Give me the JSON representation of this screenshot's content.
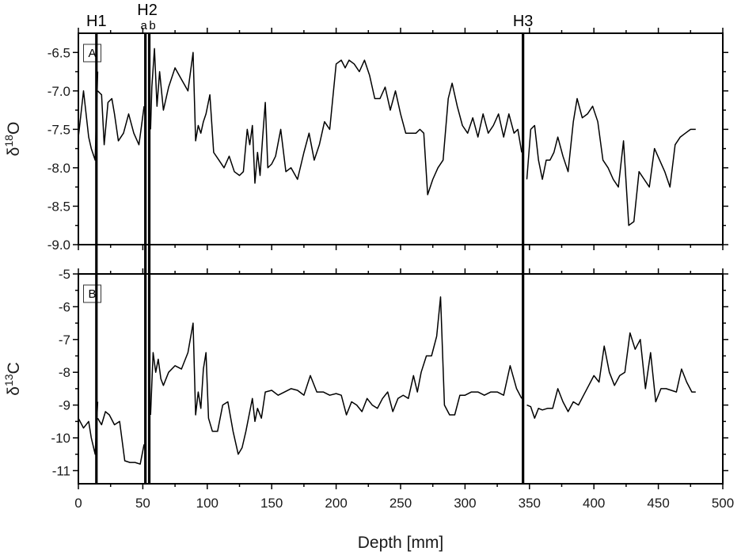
{
  "chart_data": [
    {
      "type": "line",
      "panel_label": "A",
      "ylabel": {
        "main": "δ",
        "sup": "18",
        "tail": "O"
      },
      "ylim": [
        -9.0,
        -6.25
      ],
      "yticks": [
        "-6.5",
        "-7.0",
        "-7.5",
        "-8.0",
        "-8.5",
        "-9.0"
      ],
      "yticks_values": [
        -6.5,
        -7.0,
        -7.5,
        -8.0,
        -8.5,
        -9.0
      ],
      "xlim": [
        0,
        500
      ],
      "series": [
        {
          "segments": [
            {
              "x": [
                0,
                4,
                8,
                10,
                13,
                15
              ],
              "y": [
                -7.6,
                -7.0,
                -7.6,
                -7.75,
                -7.9,
                -6.75
              ]
            },
            {
              "x": [
                15,
                18,
                20,
                23,
                26,
                28,
                31,
                35,
                39,
                43,
                47,
                49,
                51
              ],
              "y": [
                -7.0,
                -7.05,
                -7.7,
                -7.15,
                -7.1,
                -7.3,
                -7.65,
                -7.55,
                -7.3,
                -7.55,
                -7.7,
                -7.45,
                -7.2
              ]
            },
            {
              "x": [
                56,
                57,
                59,
                61,
                63,
                66,
                70,
                75,
                80,
                85,
                89,
                91,
                93,
                95,
                97,
                99,
                102,
                105,
                109,
                113,
                117,
                121,
                125,
                128,
                131,
                133,
                135,
                137,
                139,
                141,
                143,
                145,
                147,
                150,
                153,
                157,
                161,
                165,
                170,
                175,
                179,
                183,
                187,
                191,
                195,
                200,
                204,
                207,
                210,
                214,
                218,
                222,
                226,
                230,
                234,
                238,
                242,
                246,
                250,
                254,
                258,
                262,
                265,
                268,
                271,
                275,
                279,
                283,
                287,
                290,
                294,
                298,
                302,
                306,
                310,
                314,
                318,
                322,
                326,
                330,
                334,
                338,
                341,
                344
              ],
              "y": [
                -7.5,
                -6.95,
                -6.45,
                -7.2,
                -6.75,
                -7.25,
                -6.95,
                -6.7,
                -6.85,
                -7.0,
                -6.5,
                -7.65,
                -7.45,
                -7.55,
                -7.4,
                -7.3,
                -7.05,
                -7.8,
                -7.9,
                -8.0,
                -7.85,
                -8.05,
                -8.1,
                -8.05,
                -7.5,
                -7.7,
                -7.45,
                -8.2,
                -7.8,
                -8.1,
                -7.6,
                -7.15,
                -8.0,
                -7.95,
                -7.85,
                -7.5,
                -8.05,
                -8.0,
                -8.15,
                -7.8,
                -7.55,
                -7.9,
                -7.7,
                -7.4,
                -7.5,
                -6.65,
                -6.6,
                -6.7,
                -6.6,
                -6.65,
                -6.75,
                -6.6,
                -6.8,
                -7.1,
                -7.1,
                -6.95,
                -7.25,
                -7.0,
                -7.3,
                -7.55,
                -7.55,
                -7.55,
                -7.5,
                -7.55,
                -8.35,
                -8.15,
                -8.0,
                -7.9,
                -7.1,
                -6.9,
                -7.2,
                -7.45,
                -7.55,
                -7.35,
                -7.6,
                -7.3,
                -7.55,
                -7.45,
                -7.3,
                -7.6,
                -7.3,
                -7.55,
                -7.5,
                -7.8
              ]
            },
            {
              "x": [
                348,
                351,
                354,
                357,
                360,
                363,
                366,
                369,
                372,
                376,
                380,
                384,
                387,
                391,
                395,
                399,
                403,
                407,
                411,
                415,
                419,
                423,
                427,
                431,
                435,
                439,
                443,
                447,
                451,
                455,
                459,
                463,
                467,
                471,
                475,
                479
              ],
              "y": [
                -8.15,
                -7.5,
                -7.45,
                -7.9,
                -8.15,
                -7.9,
                -7.9,
                -7.8,
                -7.6,
                -7.85,
                -8.05,
                -7.4,
                -7.1,
                -7.35,
                -7.3,
                -7.2,
                -7.4,
                -7.9,
                -8.0,
                -8.15,
                -8.25,
                -7.65,
                -8.75,
                -8.7,
                -8.05,
                -8.15,
                -8.25,
                -7.75,
                -7.9,
                -8.05,
                -8.25,
                -7.7,
                -7.6,
                -7.55,
                -7.5,
                -7.5
              ]
            }
          ]
        }
      ]
    },
    {
      "type": "line",
      "panel_label": "B",
      "ylabel": {
        "main": "δ",
        "sup": "13",
        "tail": "C"
      },
      "ylim": [
        -11.4,
        -5.0
      ],
      "yticks": [
        "-5",
        "-6",
        "-7",
        "-8",
        "-9",
        "-10",
        "-11"
      ],
      "yticks_values": [
        -5,
        -6,
        -7,
        -8,
        -9,
        -10,
        -11
      ],
      "xlim": [
        0,
        500
      ],
      "series": [
        {
          "segments": [
            {
              "x": [
                0,
                4,
                8,
                10,
                13,
                15
              ],
              "y": [
                -9.4,
                -9.7,
                -9.5,
                -10.0,
                -10.5,
                -8.9
              ]
            },
            {
              "x": [
                15,
                18,
                21,
                24,
                28,
                32,
                36,
                40,
                44,
                48,
                51
              ],
              "y": [
                -9.4,
                -9.6,
                -9.2,
                -9.3,
                -9.6,
                -9.5,
                -10.7,
                -10.75,
                -10.75,
                -10.8,
                -10.2
              ]
            },
            {
              "x": [
                56,
                58,
                60,
                62,
                64,
                66,
                70,
                75,
                80,
                85,
                89,
                91,
                93,
                95,
                97,
                99,
                101,
                104,
                108,
                112,
                116,
                120,
                124,
                127,
                130,
                133,
                135,
                137,
                139,
                142,
                145,
                150,
                155,
                160,
                165,
                170,
                175,
                180,
                185,
                190,
                195,
                200,
                204,
                208,
                212,
                216,
                220,
                224,
                228,
                232,
                236,
                240,
                244,
                248,
                252,
                256,
                260,
                263,
                266,
                270,
                274,
                278,
                281,
                284,
                288,
                292,
                296,
                300,
                305,
                310,
                315,
                320,
                325,
                330,
                335,
                340,
                344
              ],
              "y": [
                -9.3,
                -7.4,
                -8.0,
                -7.6,
                -8.2,
                -8.4,
                -8.0,
                -7.8,
                -7.9,
                -7.4,
                -6.5,
                -9.3,
                -8.6,
                -9.1,
                -7.9,
                -7.4,
                -9.4,
                -9.8,
                -9.8,
                -9.0,
                -8.9,
                -9.8,
                -10.5,
                -10.3,
                -9.8,
                -9.2,
                -8.8,
                -9.5,
                -9.1,
                -9.4,
                -8.6,
                -8.55,
                -8.7,
                -8.6,
                -8.5,
                -8.55,
                -8.7,
                -8.1,
                -8.6,
                -8.6,
                -8.7,
                -8.65,
                -8.7,
                -9.3,
                -8.9,
                -9.0,
                -9.2,
                -8.8,
                -9.0,
                -9.1,
                -8.8,
                -8.6,
                -9.2,
                -8.8,
                -8.7,
                -8.8,
                -8.1,
                -8.6,
                -8.0,
                -7.5,
                -7.5,
                -6.9,
                -5.7,
                -9.0,
                -9.3,
                -9.3,
                -8.7,
                -8.7,
                -8.6,
                -8.6,
                -8.7,
                -8.6,
                -8.6,
                -8.7,
                -7.8,
                -8.5,
                -8.8
              ]
            },
            {
              "x": [
                348,
                351,
                354,
                357,
                360,
                364,
                368,
                372,
                376,
                380,
                384,
                388,
                392,
                396,
                400,
                404,
                408,
                412,
                416,
                420,
                424,
                428,
                432,
                436,
                440,
                444,
                448,
                452,
                456,
                460,
                464,
                468,
                472,
                476,
                479
              ],
              "y": [
                -9.0,
                -9.05,
                -9.4,
                -9.1,
                -9.15,
                -9.1,
                -9.1,
                -8.5,
                -8.9,
                -9.2,
                -8.9,
                -9.0,
                -8.7,
                -8.4,
                -8.1,
                -8.3,
                -7.2,
                -8.0,
                -8.4,
                -8.1,
                -8.0,
                -6.8,
                -7.3,
                -7.0,
                -8.5,
                -7.4,
                -8.9,
                -8.5,
                -8.5,
                -8.55,
                -8.6,
                -7.9,
                -8.3,
                -8.6,
                -8.6
              ]
            }
          ]
        }
      ]
    }
  ],
  "xaxis": {
    "label": "Depth [mm]",
    "xlim": [
      0,
      500
    ],
    "ticks": [
      "0",
      "50",
      "100",
      "150",
      "200",
      "250",
      "300",
      "350",
      "400",
      "450",
      "500"
    ],
    "ticks_values": [
      0,
      50,
      100,
      150,
      200,
      250,
      300,
      350,
      400,
      450,
      500
    ]
  },
  "hiatuses": [
    {
      "label": "H1",
      "x": 14
    },
    {
      "label": "H2",
      "sublabels": [
        "a",
        "b"
      ],
      "x_a": 52,
      "x_b": 55
    },
    {
      "label": "H3",
      "x": 345
    }
  ]
}
